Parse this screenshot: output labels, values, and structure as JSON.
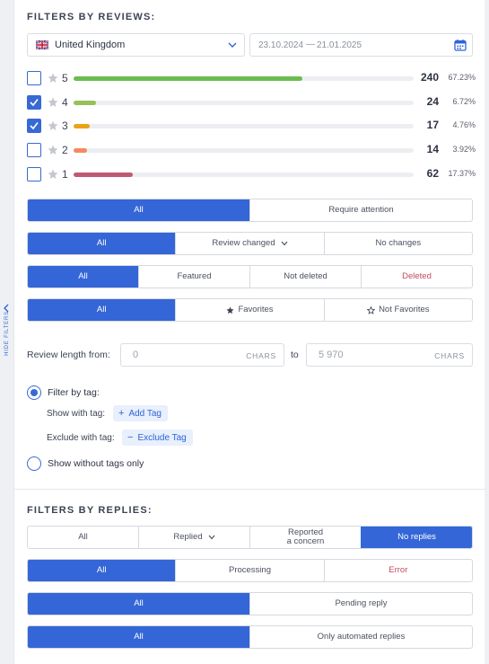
{
  "sidebar": {
    "hide_label": "Hide filters"
  },
  "reviews": {
    "title": "FILTERS BY REVIEWS:",
    "country": "United Kingdom",
    "date_from": "23.10.2024",
    "date_sep": "—",
    "date_to": "21.01.2025",
    "ratings": [
      {
        "stars": "5",
        "checked": false,
        "count": "240",
        "percent": "67.23%",
        "fraction": 0.6723,
        "color": "#6cbd4f"
      },
      {
        "stars": "4",
        "checked": true,
        "count": "24",
        "percent": "6.72%",
        "fraction": 0.0672,
        "color": "#94c257"
      },
      {
        "stars": "3",
        "checked": true,
        "count": "17",
        "percent": "4.76%",
        "fraction": 0.0476,
        "color": "#e8a417"
      },
      {
        "stars": "2",
        "checked": false,
        "count": "14",
        "percent": "3.92%",
        "fraction": 0.0392,
        "color": "#f28a62"
      },
      {
        "stars": "1",
        "checked": false,
        "count": "62",
        "percent": "17.37%",
        "fraction": 0.1737,
        "color": "#c05a72"
      }
    ],
    "attention": {
      "all": "All",
      "require": "Require attention"
    },
    "changed": {
      "all": "All",
      "changed": "Review changed",
      "none": "No changes"
    },
    "deleted": {
      "all": "All",
      "featured": "Featured",
      "not_deleted": "Not deleted",
      "deleted": "Deleted"
    },
    "favorites": {
      "all": "All",
      "fav": "Favorites",
      "not_fav": "Not Favorites"
    },
    "length": {
      "label": "Review length from:",
      "from_value": "0",
      "unit": "CHARS",
      "to": "to",
      "to_value": "5 970"
    },
    "tags": {
      "filter_by_tag": "Filter by tag:",
      "show_with": "Show with tag:",
      "add_tag": "Add Tag",
      "exclude_with": "Exclude with tag:",
      "exclude_tag": "Exclude Tag",
      "without_tags": "Show without tags only"
    }
  },
  "replies": {
    "title": "FILTERS BY REPLIES:",
    "status": {
      "all": "All",
      "replied": "Replied",
      "reported_line1": "Reported",
      "reported_line2": "a concern",
      "no_replies": "No replies"
    },
    "processing": {
      "all": "All",
      "processing": "Processing",
      "error": "Error"
    },
    "pending": {
      "all": "All",
      "pending": "Pending reply"
    },
    "automated": {
      "all": "All",
      "only": "Only automated replies"
    }
  },
  "colors": {
    "accent": "#3466d8",
    "error": "#c54a5e"
  }
}
